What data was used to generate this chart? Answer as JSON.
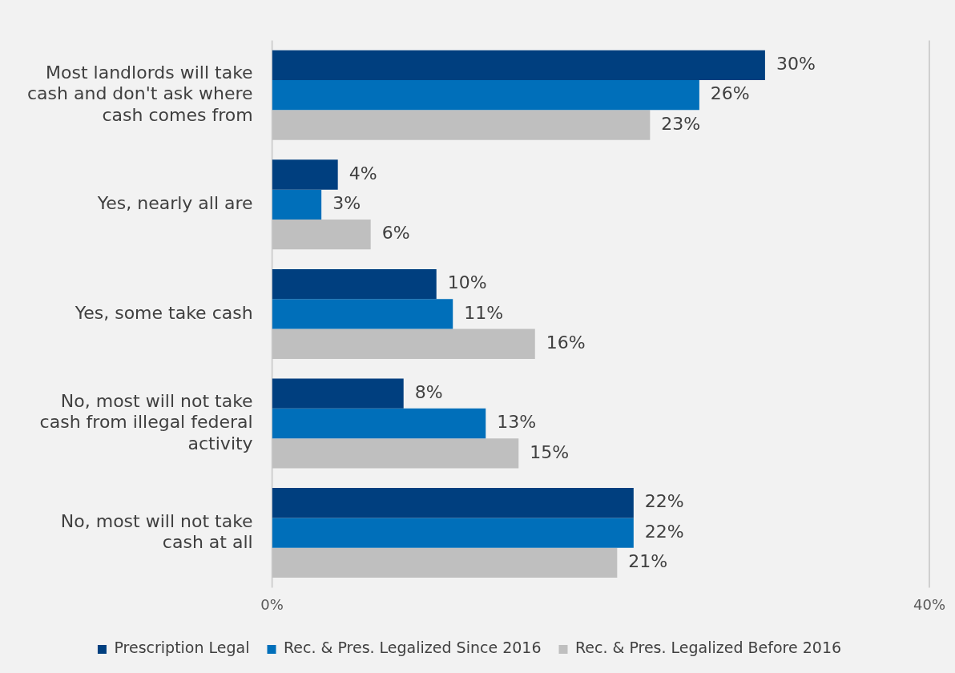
{
  "chart_data": {
    "type": "bar",
    "orientation": "horizontal",
    "categories": [
      "Most landlords will take cash and don't ask where cash comes from",
      "Yes, nearly all are",
      "Yes, some take cash",
      "No, most will not take cash from illegal federal activity",
      "No, most will not take cash at all"
    ],
    "series": [
      {
        "name": "Prescription Legal",
        "color": "#003f7f",
        "values": [
          30,
          4,
          10,
          8,
          22
        ],
        "value_labels": [
          "30%",
          "4%",
          "10%",
          "8%",
          "22%"
        ]
      },
      {
        "name": "Rec. & Pres. Legalized Since 2016",
        "color": "#006fba",
        "values": [
          26,
          3,
          11,
          13,
          22
        ],
        "value_labels": [
          "26%",
          "3%",
          "11%",
          "13%",
          "22%"
        ]
      },
      {
        "name": "Rec. & Pres. Legalized Before 2016",
        "color": "#bfbfbf",
        "values": [
          23,
          6,
          16,
          15,
          21
        ],
        "value_labels": [
          "23%",
          "6%",
          "16%",
          "15%",
          "21%"
        ]
      }
    ],
    "xlim": [
      0,
      40
    ],
    "xticks": [
      {
        "value": 0,
        "label": "0%"
      },
      {
        "value": 40,
        "label": "40%"
      }
    ],
    "legend": "bottom"
  }
}
